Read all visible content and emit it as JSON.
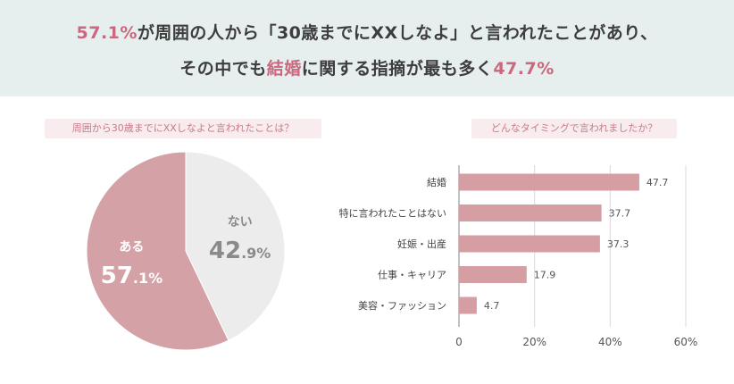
{
  "headline": {
    "line1_pct": "57.1%",
    "line1_mid": "が周囲の人から",
    "line1_quote": "「30歳までにXXしなよ」",
    "line1_end": "と言われたことがあり、",
    "line2_start": "その中でも",
    "line2_hl": "結婚",
    "line2_mid": "に関する指摘が最も多く",
    "line2_pct": "47.7%"
  },
  "colors": {
    "accent": "#c9687e",
    "pie_yes": "#d4a2a6",
    "pie_no": "#ececec",
    "bar": "#d49ea3",
    "header_bg": "#e7eeee",
    "pill_bg": "#f8ecee"
  },
  "chart_data": [
    {
      "type": "pie",
      "title": "周囲から30歳までにXXしなよと言われたことは？",
      "slices": [
        {
          "label": "ある",
          "value": 57.1,
          "display_int": "57",
          "display_dec": ".1%"
        },
        {
          "label": "ない",
          "value": 42.9,
          "display_int": "42",
          "display_dec": ".9%"
        }
      ]
    },
    {
      "type": "bar",
      "orientation": "horizontal",
      "title": "どんなタイミングで言われましたか？",
      "categories": [
        "結婚",
        "特に言われたことはない",
        "妊娠・出産",
        "仕事・キャリア",
        "美容・ファッション"
      ],
      "values": [
        47.7,
        37.7,
        37.3,
        17.9,
        4.7
      ],
      "value_labels": [
        "47.7",
        "37.7",
        "37.3",
        "17.9",
        "4.7"
      ],
      "xlim": [
        0,
        60
      ],
      "xticks": [
        "0",
        "20%",
        "40%",
        "60%"
      ],
      "grid": true
    }
  ]
}
